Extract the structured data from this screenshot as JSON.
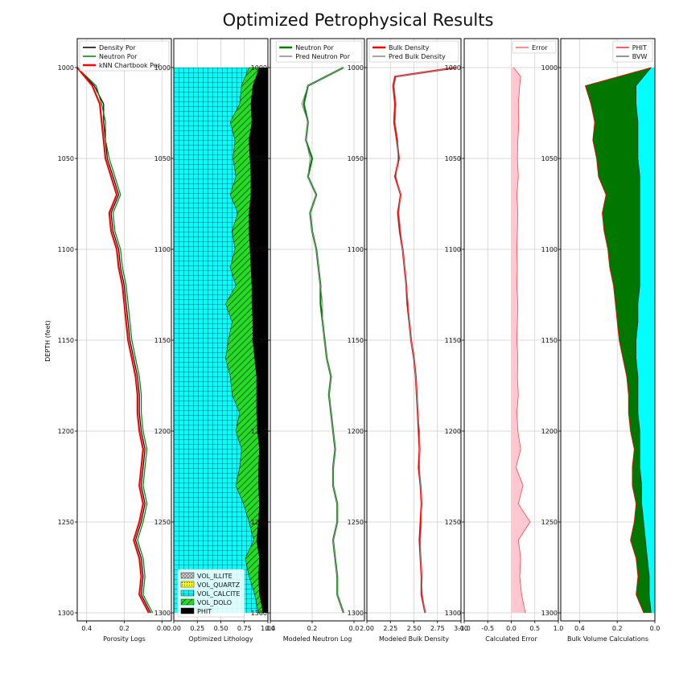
{
  "chart_data": {
    "title": "Optimized Petrophysical Results",
    "ylabel": "DEPTH (feet)",
    "ylim": [
      1000,
      1300
    ],
    "depth_ticks": [
      "1000",
      "1050",
      "1100",
      "1150",
      "1200",
      "1250",
      "1300"
    ],
    "grid": true,
    "colors": {
      "density": "#000000",
      "neutron": "#008000",
      "knn": "#ff0000",
      "calcite": "#00ffff",
      "dolo": "#22dd22",
      "phit_fill": "#000000",
      "bvw_fill": "#00ffff",
      "phit_area": "#007700",
      "error": "#ff4444",
      "error_fill": "#ffc8d0"
    },
    "tracks": [
      {
        "id": "porosity",
        "type": "line",
        "xlabel": "Porosity Logs",
        "xlim": [
          0.45,
          -0.05
        ],
        "xticks": [
          "0.4",
          "0.2",
          "0.0"
        ],
        "legend": [
          "Density Por",
          "Neutron Por",
          "kNN Chartbook Por"
        ],
        "legend_position": "upper-right",
        "depth": [
          1000,
          1010,
          1020,
          1030,
          1040,
          1050,
          1060,
          1070,
          1080,
          1090,
          1100,
          1110,
          1120,
          1130,
          1140,
          1150,
          1160,
          1170,
          1180,
          1190,
          1200,
          1210,
          1220,
          1230,
          1240,
          1250,
          1260,
          1270,
          1280,
          1290,
          1300
        ],
        "series": [
          {
            "values": [
              0.45,
              0.36,
              0.31,
              0.31,
              0.3,
              0.29,
              0.26,
              0.23,
              0.27,
              0.26,
              0.23,
              0.22,
              0.2,
              0.19,
              0.18,
              0.17,
              0.15,
              0.13,
              0.12,
              0.12,
              0.11,
              0.09,
              0.1,
              0.11,
              0.09,
              0.11,
              0.14,
              0.11,
              0.1,
              0.11,
              0.06
            ]
          },
          {
            "values": [
              0.45,
              0.35,
              0.32,
              0.3,
              0.3,
              0.28,
              0.25,
              0.22,
              0.26,
              0.25,
              0.22,
              0.21,
              0.19,
              0.18,
              0.17,
              0.16,
              0.14,
              0.12,
              0.11,
              0.11,
              0.1,
              0.08,
              0.09,
              0.1,
              0.08,
              0.1,
              0.13,
              0.1,
              0.09,
              0.1,
              0.05
            ]
          },
          {
            "values": [
              0.45,
              0.37,
              0.33,
              0.32,
              0.31,
              0.3,
              0.27,
              0.24,
              0.28,
              0.27,
              0.24,
              0.23,
              0.21,
              0.2,
              0.19,
              0.18,
              0.16,
              0.14,
              0.13,
              0.13,
              0.12,
              0.1,
              0.11,
              0.12,
              0.1,
              0.12,
              0.15,
              0.12,
              0.11,
              0.12,
              0.07
            ]
          }
        ]
      },
      {
        "id": "lithology",
        "type": "stacked",
        "xlabel": "Optimized Lithology",
        "xlim": [
          0,
          1
        ],
        "xticks": [
          "0.00",
          "0.25",
          "0.50",
          "0.75",
          "1.00"
        ],
        "legend": [
          "VOL_ILLITE",
          "VOL_QUARTZ",
          "VOL_CALCITE",
          "VOL_DOLO",
          "PHIT"
        ],
        "legend_position": "lower-left",
        "depth": [
          1000,
          1010,
          1020,
          1030,
          1040,
          1050,
          1060,
          1070,
          1080,
          1090,
          1100,
          1110,
          1120,
          1130,
          1140,
          1150,
          1160,
          1170,
          1180,
          1190,
          1200,
          1210,
          1220,
          1230,
          1240,
          1250,
          1260,
          1270,
          1280,
          1290,
          1300
        ],
        "calcite_top": [
          0.8,
          0.72,
          0.7,
          0.6,
          0.65,
          0.63,
          0.66,
          0.6,
          0.68,
          0.62,
          0.65,
          0.6,
          0.66,
          0.55,
          0.62,
          0.58,
          0.55,
          0.6,
          0.62,
          0.7,
          0.66,
          0.72,
          0.7,
          0.66,
          0.74,
          0.8,
          0.85,
          0.76,
          0.8,
          0.86,
          0.9
        ],
        "dolo_top": [
          0.91,
          0.84,
          0.82,
          0.83,
          0.8,
          0.81,
          0.82,
          0.82,
          0.8,
          0.8,
          0.81,
          0.82,
          0.83,
          0.83,
          0.84,
          0.84,
          0.86,
          0.88,
          0.88,
          0.88,
          0.89,
          0.91,
          0.9,
          0.9,
          0.91,
          0.9,
          0.88,
          0.91,
          0.9,
          0.91,
          0.95
        ]
      },
      {
        "id": "neutron",
        "type": "line",
        "xlabel": "Modeled Neutron Log",
        "xlim": [
          0.4,
          -0.05
        ],
        "xticks": [
          "0.4",
          "0.2",
          "0.0"
        ],
        "legend": [
          "Neutron Por",
          "Pred Neutron Por"
        ],
        "legend_position": "upper-right",
        "depth": [
          1000,
          1010,
          1020,
          1030,
          1040,
          1050,
          1060,
          1070,
          1080,
          1090,
          1100,
          1110,
          1120,
          1130,
          1140,
          1150,
          1160,
          1170,
          1180,
          1190,
          1200,
          1210,
          1220,
          1230,
          1240,
          1250,
          1260,
          1270,
          1280,
          1290,
          1300
        ],
        "series": [
          {
            "values": [
              0.05,
              0.22,
              0.24,
              0.22,
              0.23,
              0.2,
              0.22,
              0.18,
              0.21,
              0.2,
              0.18,
              0.17,
              0.16,
              0.16,
              0.15,
              0.14,
              0.13,
              0.11,
              0.12,
              0.11,
              0.1,
              0.09,
              0.1,
              0.1,
              0.08,
              0.08,
              0.1,
              0.09,
              0.08,
              0.08,
              0.05
            ]
          },
          {
            "values": [
              0.05,
              0.22,
              0.25,
              0.22,
              0.23,
              0.21,
              0.22,
              0.18,
              0.21,
              0.2,
              0.18,
              0.17,
              0.16,
              0.15,
              0.15,
              0.14,
              0.13,
              0.11,
              0.12,
              0.11,
              0.1,
              0.09,
              0.1,
              0.1,
              0.08,
              0.08,
              0.1,
              0.09,
              0.08,
              0.08,
              0.05
            ]
          }
        ]
      },
      {
        "id": "bulk",
        "type": "line",
        "xlabel": "Modeled Bulk Density",
        "xlim": [
          2.0,
          3.0
        ],
        "xticks": [
          "2.00",
          "2.25",
          "2.50",
          "2.75",
          "3.00"
        ],
        "legend": [
          "Bulk Density",
          "Pred Bulk Density"
        ],
        "legend_position": "upper-right",
        "depth": [
          1000,
          1005,
          1010,
          1020,
          1030,
          1040,
          1050,
          1060,
          1070,
          1080,
          1090,
          1100,
          1110,
          1120,
          1130,
          1140,
          1150,
          1160,
          1170,
          1180,
          1190,
          1200,
          1210,
          1220,
          1230,
          1240,
          1250,
          1260,
          1270,
          1280,
          1290,
          1300
        ],
        "series": [
          {
            "values": [
              2.95,
              2.3,
              2.28,
              2.3,
              2.29,
              2.32,
              2.34,
              2.3,
              2.36,
              2.33,
              2.35,
              2.38,
              2.4,
              2.42,
              2.43,
              2.45,
              2.47,
              2.5,
              2.52,
              2.53,
              2.54,
              2.55,
              2.56,
              2.55,
              2.57,
              2.58,
              2.57,
              2.56,
              2.57,
              2.58,
              2.58,
              2.62
            ]
          },
          {
            "values": [
              2.95,
              2.31,
              2.29,
              2.31,
              2.3,
              2.33,
              2.33,
              2.31,
              2.36,
              2.34,
              2.36,
              2.38,
              2.4,
              2.42,
              2.44,
              2.45,
              2.47,
              2.5,
              2.52,
              2.53,
              2.54,
              2.56,
              2.56,
              2.56,
              2.57,
              2.58,
              2.58,
              2.57,
              2.57,
              2.58,
              2.59,
              2.62
            ]
          }
        ]
      },
      {
        "id": "error",
        "type": "line",
        "xlabel": "Calculated Error",
        "xlim": [
          -1.0,
          1.0
        ],
        "xticks": [
          "-1.0",
          "-0.5",
          "0.0",
          "0.5",
          "1.0"
        ],
        "legend": [
          "Error"
        ],
        "legend_position": "upper-right",
        "depth": [
          1000,
          1005,
          1010,
          1020,
          1030,
          1040,
          1050,
          1060,
          1070,
          1080,
          1090,
          1100,
          1110,
          1120,
          1130,
          1140,
          1150,
          1160,
          1170,
          1180,
          1190,
          1200,
          1210,
          1220,
          1230,
          1240,
          1250,
          1260,
          1270,
          1280,
          1290,
          1300
        ],
        "series": [
          {
            "values": [
              0.05,
              0.2,
              0.18,
              0.15,
              0.16,
              0.14,
              0.13,
              0.15,
              0.12,
              0.14,
              0.13,
              0.12,
              0.13,
              0.12,
              0.14,
              0.13,
              0.12,
              0.14,
              0.13,
              0.15,
              0.12,
              0.14,
              0.2,
              0.1,
              0.25,
              0.15,
              0.4,
              0.15,
              0.2,
              0.18,
              0.22,
              0.3
            ]
          }
        ]
      },
      {
        "id": "bulkvol",
        "type": "area",
        "xlabel": "Bulk Volume Calculations",
        "xlim": [
          0.5,
          0.0
        ],
        "xticks": [
          "0.4",
          "0.2",
          "0.0"
        ],
        "legend": [
          "PHIT",
          "BVW"
        ],
        "legend_position": "upper-right",
        "depth": [
          1000,
          1010,
          1020,
          1030,
          1040,
          1050,
          1060,
          1070,
          1080,
          1090,
          1100,
          1110,
          1120,
          1130,
          1140,
          1150,
          1160,
          1170,
          1180,
          1190,
          1200,
          1210,
          1220,
          1230,
          1240,
          1250,
          1260,
          1270,
          1280,
          1290,
          1300
        ],
        "phit": [
          0.02,
          0.37,
          0.34,
          0.32,
          0.33,
          0.31,
          0.3,
          0.26,
          0.28,
          0.27,
          0.25,
          0.24,
          0.22,
          0.21,
          0.2,
          0.19,
          0.17,
          0.15,
          0.14,
          0.14,
          0.13,
          0.11,
          0.12,
          0.12,
          0.1,
          0.11,
          0.13,
          0.1,
          0.09,
          0.1,
          0.06
        ],
        "bvw": [
          0.02,
          0.1,
          0.1,
          0.09,
          0.09,
          0.09,
          0.08,
          0.08,
          0.08,
          0.08,
          0.08,
          0.08,
          0.08,
          0.09,
          0.09,
          0.1,
          0.1,
          0.09,
          0.09,
          0.09,
          0.08,
          0.08,
          0.08,
          0.07,
          0.07,
          0.06,
          0.05,
          0.04,
          0.03,
          0.03,
          0.02
        ]
      }
    ]
  }
}
